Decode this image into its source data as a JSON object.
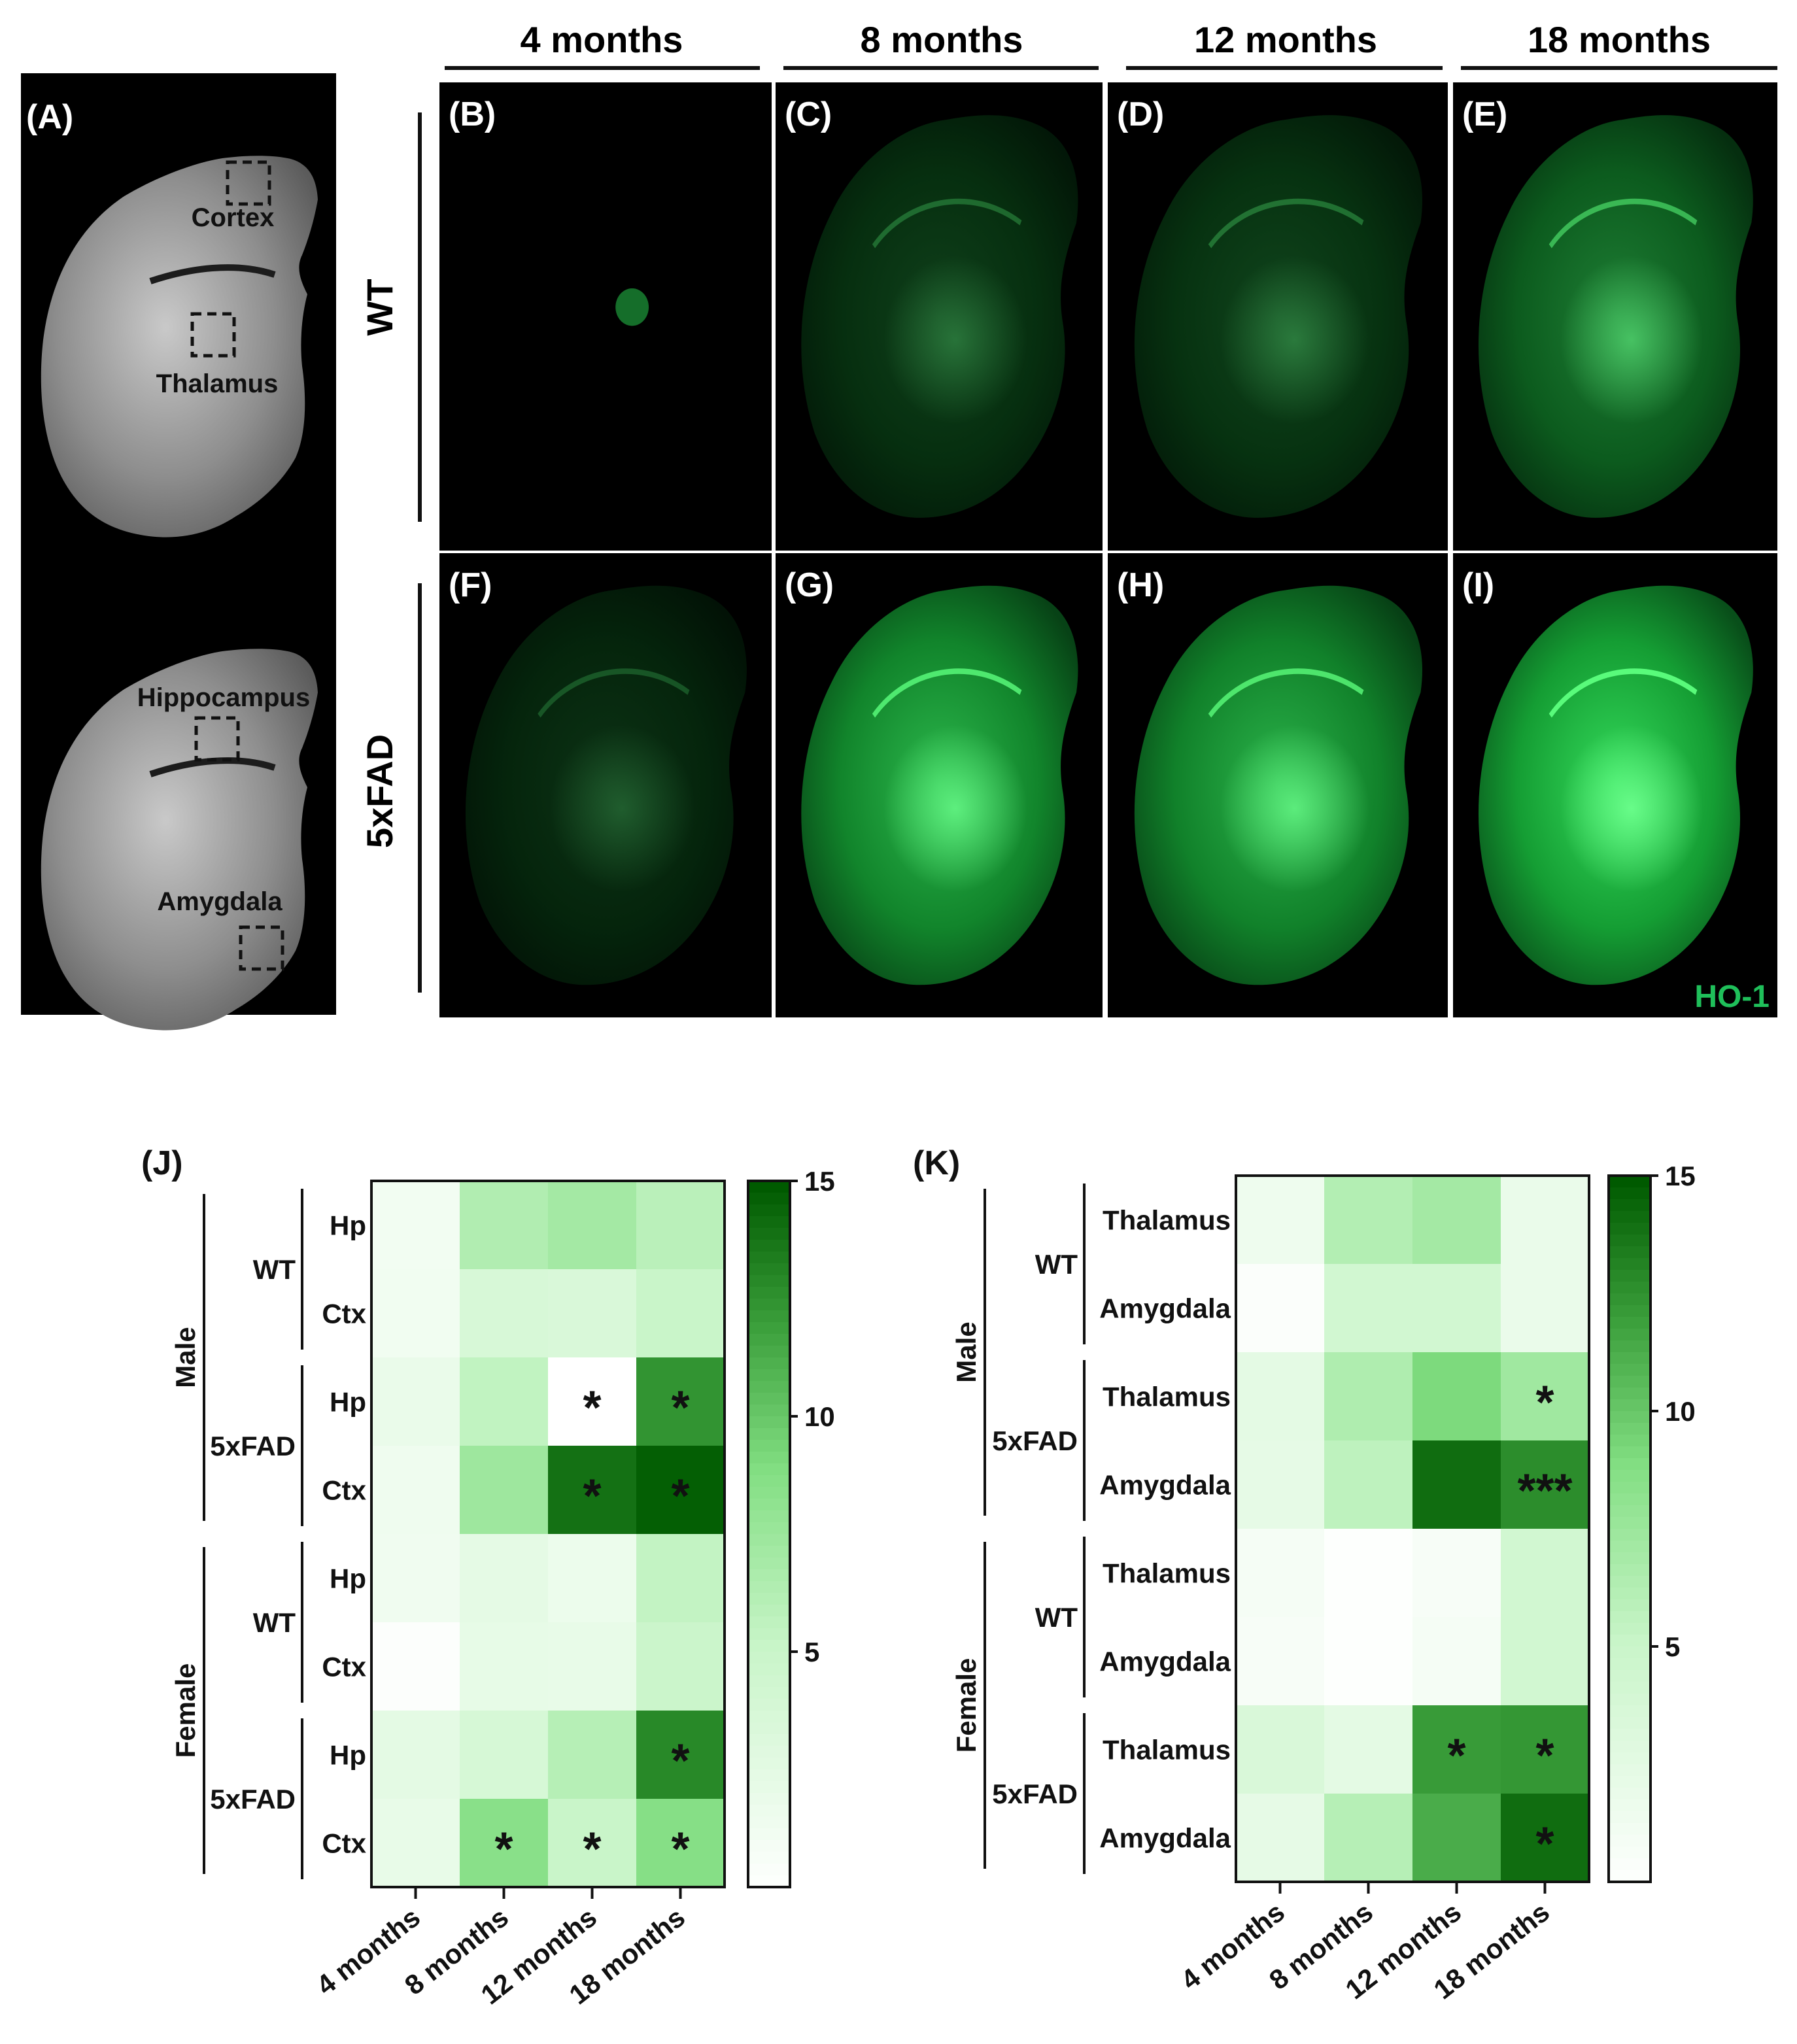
{
  "top": {
    "age_headers": [
      "4 months",
      "8 months",
      "12 months",
      "18 months"
    ],
    "genotype_labels": [
      "WT",
      "5xFAD"
    ],
    "panel_letters": [
      "(B)",
      "(C)",
      "(D)",
      "(E)",
      "(F)",
      "(G)",
      "(H)",
      "(I)"
    ],
    "stain_label": "HO-1",
    "stain_color": "#1fbf5a",
    "panel_a": {
      "letter": "(A)",
      "upper_regions": [
        "Cortex",
        "Thalamus"
      ],
      "lower_regions": [
        "Hippocampus",
        "Amygdala"
      ]
    },
    "intensity_levels": [
      0.04,
      0.28,
      0.3,
      0.55,
      0.22,
      0.8,
      0.78,
      0.95
    ]
  },
  "chart_data": [
    {
      "type": "heatmap",
      "panel": "(J)",
      "categories": [
        "4 months",
        "8 months",
        "12 months",
        "18 months"
      ],
      "group_labels": [
        "Male",
        "Female"
      ],
      "genotype_labels": [
        "WT",
        "5xFAD",
        "WT",
        "5xFAD"
      ],
      "row_labels": [
        "Hp",
        "Ctx",
        "Hp",
        "Ctx",
        "Hp",
        "Ctx",
        "Hp",
        "Ctx"
      ],
      "values": [
        [
          1.2,
          6.5,
          7.2,
          6.0
        ],
        [
          1.3,
          3.8,
          3.6,
          5.2
        ],
        [
          2.0,
          5.6,
          0.0,
          12.5
        ],
        [
          1.5,
          7.5,
          14.0,
          14.8
        ],
        [
          1.4,
          2.5,
          1.8,
          5.5
        ],
        [
          0.3,
          2.3,
          2.2,
          5.0
        ],
        [
          2.6,
          3.9,
          6.2,
          13.0
        ],
        [
          2.2,
          8.6,
          5.2,
          8.8
        ]
      ],
      "stars": [
        [
          "",
          "",
          "",
          ""
        ],
        [
          "",
          "",
          "",
          ""
        ],
        [
          "",
          "",
          "*",
          "*"
        ],
        [
          "",
          "",
          "*",
          "*"
        ],
        [
          "",
          "",
          "",
          ""
        ],
        [
          "",
          "",
          "",
          ""
        ],
        [
          "",
          "",
          "",
          "*"
        ],
        [
          "",
          "*",
          "*",
          "*"
        ]
      ],
      "colorbar": {
        "min": 0,
        "max": 15,
        "ticks": [
          "5",
          "10",
          "15"
        ]
      }
    },
    {
      "type": "heatmap",
      "panel": "(K)",
      "categories": [
        "4 months",
        "8 months",
        "12 months",
        "18 months"
      ],
      "group_labels": [
        "Male",
        "Female"
      ],
      "genotype_labels": [
        "WT",
        "5xFAD",
        "WT",
        "5xFAD"
      ],
      "row_labels": [
        "Thalamus",
        "Amygdala",
        "Thalamus",
        "Amygdala",
        "Thalamus",
        "Amygdala",
        "Thalamus",
        "Amygdala"
      ],
      "values": [
        [
          1.6,
          6.4,
          7.2,
          2.0
        ],
        [
          0.4,
          4.4,
          4.4,
          2.0
        ],
        [
          2.6,
          6.6,
          9.2,
          7.4
        ],
        [
          2.4,
          5.8,
          14.2,
          12.8
        ],
        [
          1.0,
          0.2,
          0.8,
          4.4
        ],
        [
          0.8,
          0.2,
          1.0,
          4.4
        ],
        [
          3.6,
          2.6,
          12.2,
          12.4
        ],
        [
          2.4,
          6.2,
          11.4,
          14.2
        ]
      ],
      "stars": [
        [
          "",
          "",
          "",
          ""
        ],
        [
          "",
          "",
          "",
          ""
        ],
        [
          "",
          "",
          "",
          "*"
        ],
        [
          "",
          "",
          "",
          "***"
        ],
        [
          "",
          "",
          "",
          ""
        ],
        [
          "",
          "",
          "",
          ""
        ],
        [
          "",
          "",
          "*",
          "*"
        ],
        [
          "",
          "",
          "",
          "*"
        ]
      ],
      "colorbar": {
        "min": 0,
        "max": 15,
        "ticks": [
          "5",
          "10",
          "15"
        ]
      }
    }
  ]
}
